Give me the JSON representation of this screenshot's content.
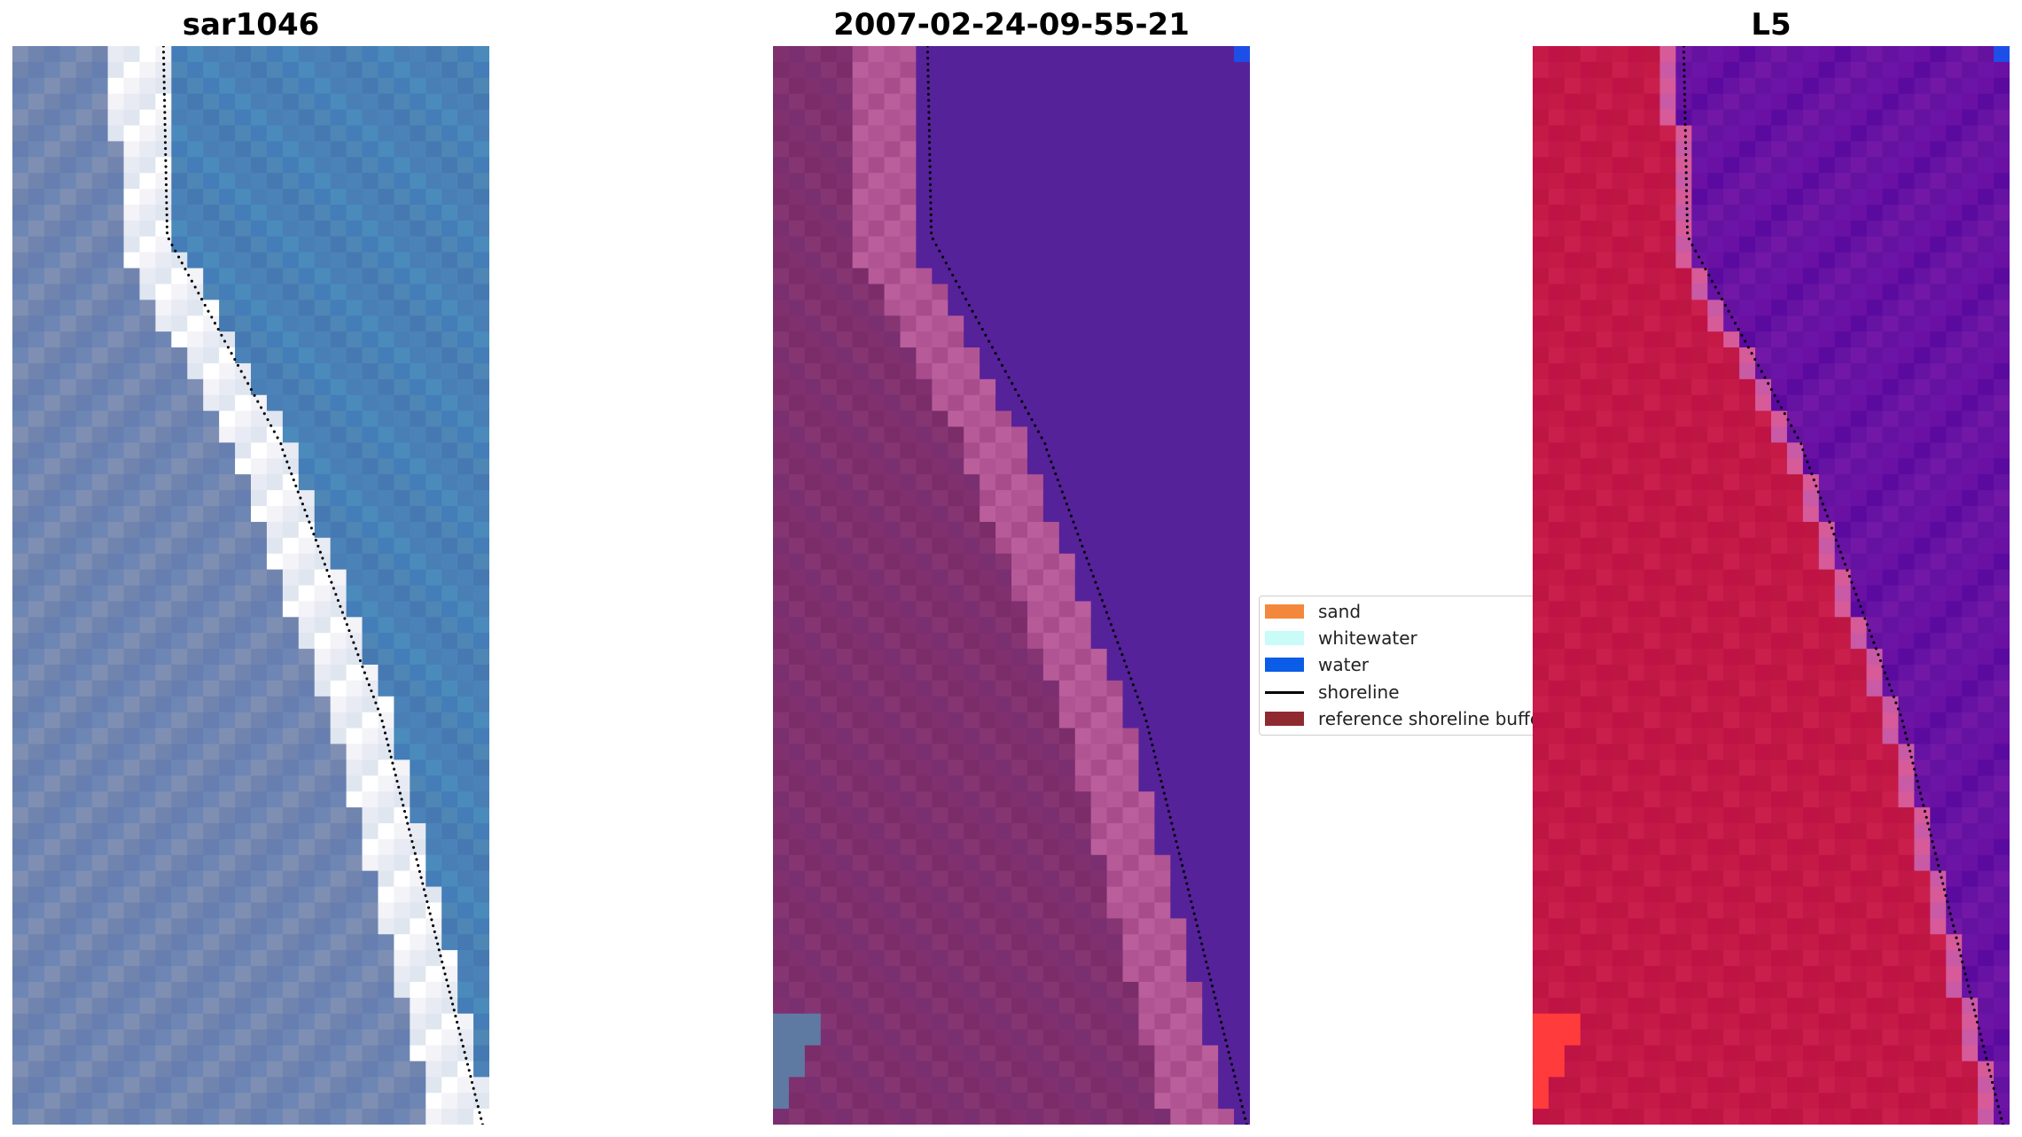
{
  "panels": [
    {
      "title": "sar1046",
      "kind": "rgb",
      "colors": {
        "land": [
          "#7f8fb4",
          "#6e86b3",
          "#667fb0",
          "#7184ad"
        ],
        "bright": [
          "#ffffff",
          "#f3f3f8",
          "#e8ebf4",
          "#dfe6ef"
        ],
        "sea": [
          "#4a7fb6",
          "#4b83b8",
          "#4679b2",
          "#4e86b5",
          "#447db7",
          "#4a8bbb"
        ]
      }
    },
    {
      "title": "2007-02-24-09-55-21",
      "kind": "classified",
      "colors": {
        "land": [
          "#80306f",
          "#7b2d6a",
          "#843572",
          "#7a2f70"
        ],
        "band": [
          "#b65a98",
          "#b05493",
          "#ba5f9c",
          "#a94c8c"
        ],
        "sea": "#55229a",
        "corner": "#1d4fe8",
        "patch": "#5f7aa2"
      }
    },
    {
      "title": "L5",
      "kind": "mndwi",
      "colors": {
        "land": [
          "#c61a46",
          "#c21848",
          "#ca1f4c",
          "#bd1643",
          "#c01345"
        ],
        "edge": [
          "#d65b98",
          "#c95aa5"
        ],
        "sea": [
          "#6a10a2",
          "#6c14a6",
          "#6512a0",
          "#7217a6",
          "#6612a2",
          "#5b0aa0"
        ],
        "corner": "#1d4fe8",
        "patch": "#ff3b3b"
      }
    }
  ],
  "legend": {
    "items": [
      {
        "label": "sand",
        "kind": "swatch",
        "color": "#f3873b"
      },
      {
        "label": "whitewater",
        "kind": "swatch",
        "color": "#c9fbf9"
      },
      {
        "label": "water",
        "kind": "swatch",
        "color": "#0b5ce6"
      },
      {
        "label": "shoreline",
        "kind": "line",
        "color": "#000000"
      },
      {
        "label": "reference shoreline buffer",
        "kind": "swatch",
        "color": "#8f2a30"
      }
    ]
  },
  "shoreline": {
    "color": "#000000"
  }
}
